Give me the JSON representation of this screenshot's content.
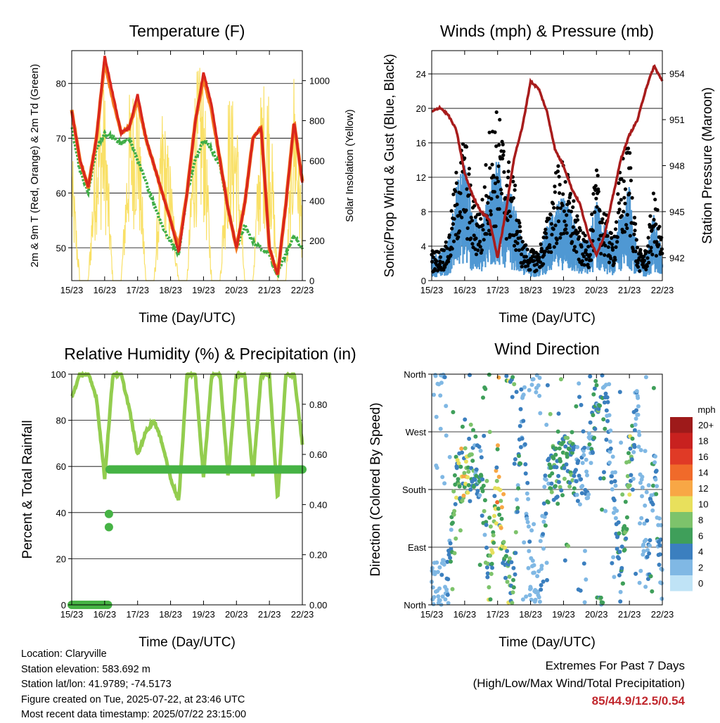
{
  "x_ticks": [
    "15/23",
    "16/23",
    "17/23",
    "18/23",
    "19/23",
    "20/23",
    "21/23",
    "22/23"
  ],
  "x_axis_label": "Time (Day/UTC)",
  "colors": {
    "temp_2m": "#d9261c",
    "temp_9m": "#f47b20",
    "dewpoint": "#3fad46",
    "solar": "#f9e066",
    "pressure": "#a81c1c",
    "gust": "#000000",
    "wind": "#4f98d3",
    "rh": "#93cd4f",
    "precip": "#46b345"
  },
  "panels": {
    "temperature": {
      "title": "Temperature (F)",
      "ylabel": "2m & 9m T (Red, Orange) & 2m Td (Green)",
      "y2label": "Solar Insolation (Yellow)",
      "yticks": [
        "50",
        "60",
        "70",
        "80"
      ],
      "y2ticks": [
        "0",
        "200",
        "400",
        "600",
        "800",
        "1000"
      ]
    },
    "winds": {
      "title": "Winds (mph) & Pressure (mb)",
      "ylabel": "Sonic/Prop Wind & Gust (Blue, Black)",
      "y2label": "Station Pressure (Maroon)",
      "yticks": [
        "0",
        "4",
        "8",
        "12",
        "16",
        "20",
        "24"
      ],
      "y2ticks": [
        "942",
        "945",
        "948",
        "951",
        "954"
      ]
    },
    "humidity": {
      "title": "Relative Humidity (%) & Precipitation (in)",
      "ylabel": "Percent & Total Rainfall",
      "yticks": [
        "0",
        "20",
        "40",
        "60",
        "80",
        "100"
      ],
      "y2ticks": [
        "0.00",
        "0.20",
        "0.40",
        "0.60",
        "0.80"
      ]
    },
    "direction": {
      "title": "Wind Direction",
      "ylabel": "Direction (Colored By Speed)",
      "yticks": [
        "North",
        "East",
        "South",
        "West",
        "North"
      ],
      "legend_unit": "mph",
      "legend_labels": [
        "20+",
        "18",
        "16",
        "14",
        "12",
        "10",
        "8",
        "6",
        "4",
        "2",
        "0"
      ],
      "legend_colors": [
        "#9e1a1a",
        "#c8211f",
        "#e03a26",
        "#f06a2a",
        "#f8a745",
        "#e8e05c",
        "#7dc36b",
        "#3f9f5a",
        "#3b7fbf",
        "#80b8e4",
        "#bfe3f6"
      ]
    }
  },
  "footer": {
    "location": "Location: Claryville",
    "elevation": "Station elevation: 583.692 m",
    "latlon": "Station lat/lon: 41.9789; -74.5173",
    "created": "Figure created on Tue, 2025-07-22, at 23:46 UTC",
    "recent": "Most recent data timestamp: 2025/07/22 23:15:00"
  },
  "extremes": {
    "line1": "Extremes For Past 7 Days",
    "line2": "(High/Low/Max Wind/Total Precipitation)",
    "values": "85/44.9/12.5/0.54"
  },
  "chart_data": [
    {
      "type": "line",
      "title": "Temperature (F)",
      "x": [
        0,
        0.25,
        0.5,
        0.75,
        1,
        1.25,
        1.5,
        1.75,
        2,
        2.25,
        2.5,
        2.75,
        3,
        3.25,
        3.5,
        3.75,
        4,
        4.25,
        4.5,
        4.75,
        5,
        5.25,
        5.5,
        5.75,
        6,
        6.25,
        6.5,
        6.75,
        7
      ],
      "xlabel": "Time (Day/UTC)",
      "ylabel": "2m & 9m T (Red, Orange) & 2m Td (Green)",
      "y2label": "Solar Insolation (Yellow)",
      "ylim": [
        44,
        86
      ],
      "y2lim": [
        0,
        1150
      ],
      "series": [
        {
          "values": [
            75,
            66,
            61,
            70,
            85,
            78,
            71,
            72,
            78,
            70,
            65,
            60,
            55,
            49,
            60,
            73,
            82,
            76,
            66,
            57,
            50,
            58,
            70,
            72,
            50,
            45,
            58,
            73,
            62
          ]
        },
        {
          "values": [
            75,
            66,
            61,
            70,
            84,
            77,
            71,
            72,
            77,
            70,
            65,
            60,
            55,
            50,
            60,
            73,
            81,
            75,
            66,
            57,
            50,
            58,
            70,
            72,
            50,
            45,
            58,
            73,
            62
          ]
        },
        {
          "values": [
            72,
            64,
            60,
            68,
            71,
            70,
            69,
            70,
            66,
            62,
            58,
            54,
            51,
            49,
            60,
            66,
            70,
            68,
            65,
            57,
            50,
            54,
            51,
            50,
            49,
            45,
            49,
            52,
            50
          ]
        },
        {
          "values": [
            700,
            0,
            0,
            900,
            1000,
            0,
            0,
            950,
            1050,
            0,
            0,
            900,
            600,
            0,
            0,
            1050,
            1100,
            0,
            0,
            950,
            900,
            0,
            0,
            1000,
            1050,
            0,
            0,
            1120,
            400
          ],
          "axis": "right"
        }
      ]
    },
    {
      "type": "line",
      "title": "Winds (mph) & Pressure (mb)",
      "x": [
        0,
        0.25,
        0.5,
        0.75,
        1,
        1.25,
        1.5,
        1.75,
        2,
        2.25,
        2.5,
        2.75,
        3,
        3.25,
        3.5,
        3.75,
        4,
        4.25,
        4.5,
        4.75,
        5,
        5.25,
        5.5,
        5.75,
        6,
        6.25,
        6.5,
        6.75,
        7
      ],
      "xlabel": "Time (Day/UTC)",
      "ylabel": "Sonic/Prop Wind & Gust (Blue, Black)",
      "y2label": "Station Pressure (Maroon)",
      "ylim": [
        0,
        26.7
      ],
      "y2lim": [
        940.5,
        955.5
      ],
      "series": [
        {
          "values": [
            2,
            2,
            3,
            7,
            9,
            5,
            4,
            7,
            9,
            7,
            6,
            3,
            2,
            2,
            4,
            6,
            6,
            5,
            3,
            3,
            6,
            4,
            3,
            5,
            7,
            2,
            2,
            5,
            2
          ]
        },
        {
          "values": [
            3,
            3,
            4,
            11,
            15,
            8,
            7,
            15,
            17,
            13,
            10,
            4,
            3,
            3,
            6,
            11,
            12,
            9,
            5,
            4,
            11,
            7,
            4,
            12,
            14,
            3,
            3,
            9,
            4
          ]
        },
        {
          "values": [
            951.5,
            951.8,
            951.3,
            950.3,
            947.5,
            946.0,
            945.0,
            944.5,
            942.0,
            945.0,
            948.5,
            950.5,
            953.5,
            953.0,
            951.5,
            949.0,
            948.0,
            946.5,
            945.5,
            943.5,
            942.2,
            943.5,
            946.0,
            948.5,
            950.0,
            951.0,
            953.0,
            954.5,
            953.5
          ],
          "axis": "right"
        }
      ]
    },
    {
      "type": "line",
      "title": "Relative Humidity (%) & Precipitation (in)",
      "x": [
        0,
        0.25,
        0.5,
        0.75,
        1,
        1.25,
        1.5,
        1.75,
        2,
        2.25,
        2.5,
        2.75,
        3,
        3.25,
        3.5,
        3.75,
        4,
        4.25,
        4.5,
        4.75,
        5,
        5.25,
        5.5,
        5.75,
        6,
        6.25,
        6.5,
        6.75,
        7
      ],
      "xlabel": "Time (Day/UTC)",
      "ylabel": "Percent & Total Rainfall",
      "ylim": [
        0,
        100
      ],
      "y2lim": [
        0,
        0.92
      ],
      "series": [
        {
          "values": [
            90,
            100,
            100,
            90,
            55,
            100,
            100,
            85,
            65,
            75,
            80,
            70,
            55,
            45,
            100,
            100,
            55,
            100,
            100,
            55,
            100,
            100,
            55,
            100,
            100,
            45,
            100,
            100,
            70
          ]
        },
        {
          "values": [
            0,
            0,
            0,
            0,
            0,
            0.54,
            0.54,
            0.54,
            0.54,
            0.54,
            0.54,
            0.54,
            0.54,
            0.54,
            0.54,
            0.54,
            0.54,
            0.54,
            0.54,
            0.54,
            0.54,
            0.54,
            0.54,
            0.54,
            0.54,
            0.54,
            0.54,
            0.54,
            0.54
          ],
          "axis": "right"
        }
      ]
    },
    {
      "type": "scatter",
      "title": "Wind Direction",
      "x": [
        0,
        0.25,
        0.5,
        0.75,
        1,
        1.25,
        1.5,
        1.75,
        2,
        2.25,
        2.5,
        2.75,
        3,
        3.25,
        3.5,
        3.75,
        4,
        4.25,
        4.5,
        4.75,
        5,
        5.25,
        5.5,
        5.75,
        6,
        6.25,
        6.5,
        6.75,
        7
      ],
      "xlabel": "Time (Day/UTC)",
      "ylabel": "Direction (Colored By Speed)",
      "ylim": [
        0,
        360
      ],
      "series": [
        {
          "values": [
            30,
            20,
            40,
            200,
            210,
            230,
            200,
            30,
            210,
            40,
            20,
            340,
            30,
            20,
            200,
            210,
            220,
            215,
            200,
            210,
            340,
            320,
            200,
            30,
            210,
            330,
            30,
            220,
            30
          ]
        }
      ],
      "legend_unit": "mph",
      "legend_labels": [
        "20+",
        "18",
        "16",
        "14",
        "12",
        "10",
        "8",
        "6",
        "4",
        "2",
        "0"
      ]
    }
  ]
}
